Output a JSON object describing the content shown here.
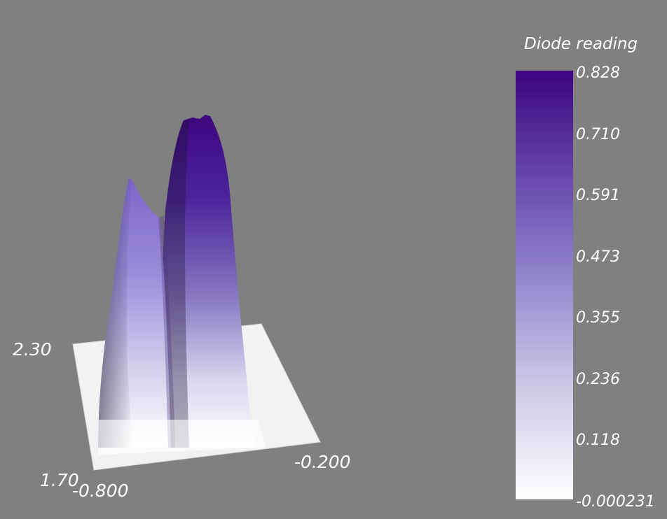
{
  "chart_data": {
    "type": "surface",
    "x_axis": {
      "min_label": "-0.800",
      "max_label": "-0.200",
      "min": -0.8,
      "max": -0.2
    },
    "y_axis": {
      "min_label": "1.70",
      "max_label": "2.30",
      "min": 1.7,
      "max": 2.3
    },
    "colorbar": {
      "title": "Diode reading",
      "range": [
        -0.000231,
        0.828
      ],
      "ticks": [
        "0.828",
        "0.710",
        "0.591",
        "0.473",
        "0.355",
        "0.236",
        "0.118",
        "-0.000231"
      ],
      "color_low": "#ffffff",
      "color_mid": "#9485cf",
      "color_high": "#3c047f"
    },
    "peaks": [
      {
        "name": "",
        "x": -0.74,
        "y": 2.05,
        "value": 0.6
      },
      {
        "name": "",
        "x": -0.57,
        "y": 2.05,
        "value": 0.828
      }
    ],
    "background_color": "#808080"
  }
}
